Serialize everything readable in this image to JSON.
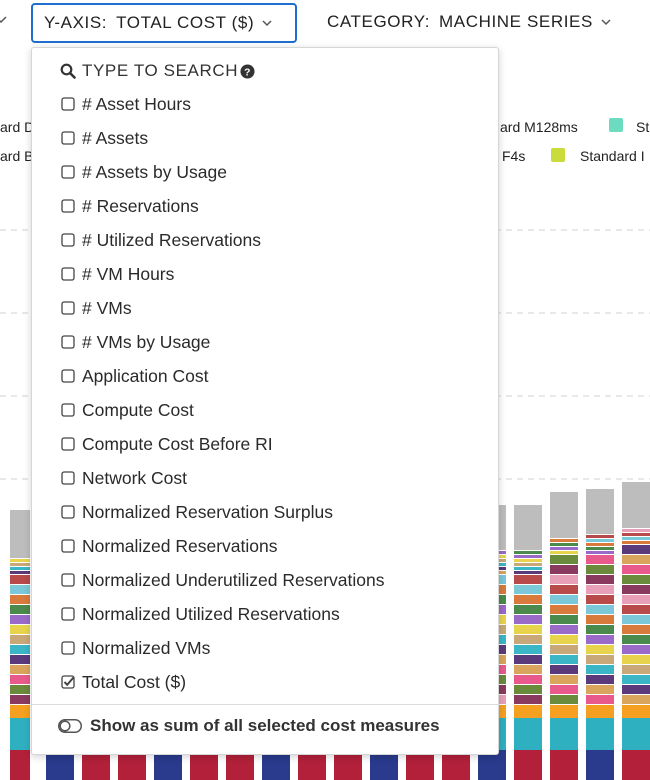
{
  "header": {
    "y_axis": {
      "label": "Y-AXIS:",
      "value": "TOTAL COST ($)"
    },
    "category": {
      "label": "CATEGORY:",
      "value": "MACHINE SERIES"
    }
  },
  "legend_fragments": [
    "ard D",
    "ard B",
    "ard M128ms",
    "F4s",
    "St",
    "Standard I"
  ],
  "dropdown": {
    "search_placeholder": "TYPE TO SEARCH",
    "options": [
      {
        "label": "# Asset Hours",
        "checked": false
      },
      {
        "label": "# Assets",
        "checked": false
      },
      {
        "label": "# Assets by Usage",
        "checked": false
      },
      {
        "label": "# Reservations",
        "checked": false
      },
      {
        "label": "# Utilized Reservations",
        "checked": false
      },
      {
        "label": "# VM Hours",
        "checked": false
      },
      {
        "label": "# VMs",
        "checked": false
      },
      {
        "label": "# VMs by Usage",
        "checked": false
      },
      {
        "label": "Application Cost",
        "checked": false
      },
      {
        "label": "Compute Cost",
        "checked": false
      },
      {
        "label": "Compute Cost Before RI",
        "checked": false
      },
      {
        "label": "Network Cost",
        "checked": false
      },
      {
        "label": "Normalized Reservation Surplus",
        "checked": false
      },
      {
        "label": "Normalized Reservations",
        "checked": false
      },
      {
        "label": "Normalized Underutilized Reservations",
        "checked": false
      },
      {
        "label": "Normalized Utilized Reservations",
        "checked": false
      },
      {
        "label": "Normalized VMs",
        "checked": false
      },
      {
        "label": "Total Cost ($)",
        "checked": true
      }
    ],
    "toggle_label": "Show as sum of all selected cost measures"
  }
}
